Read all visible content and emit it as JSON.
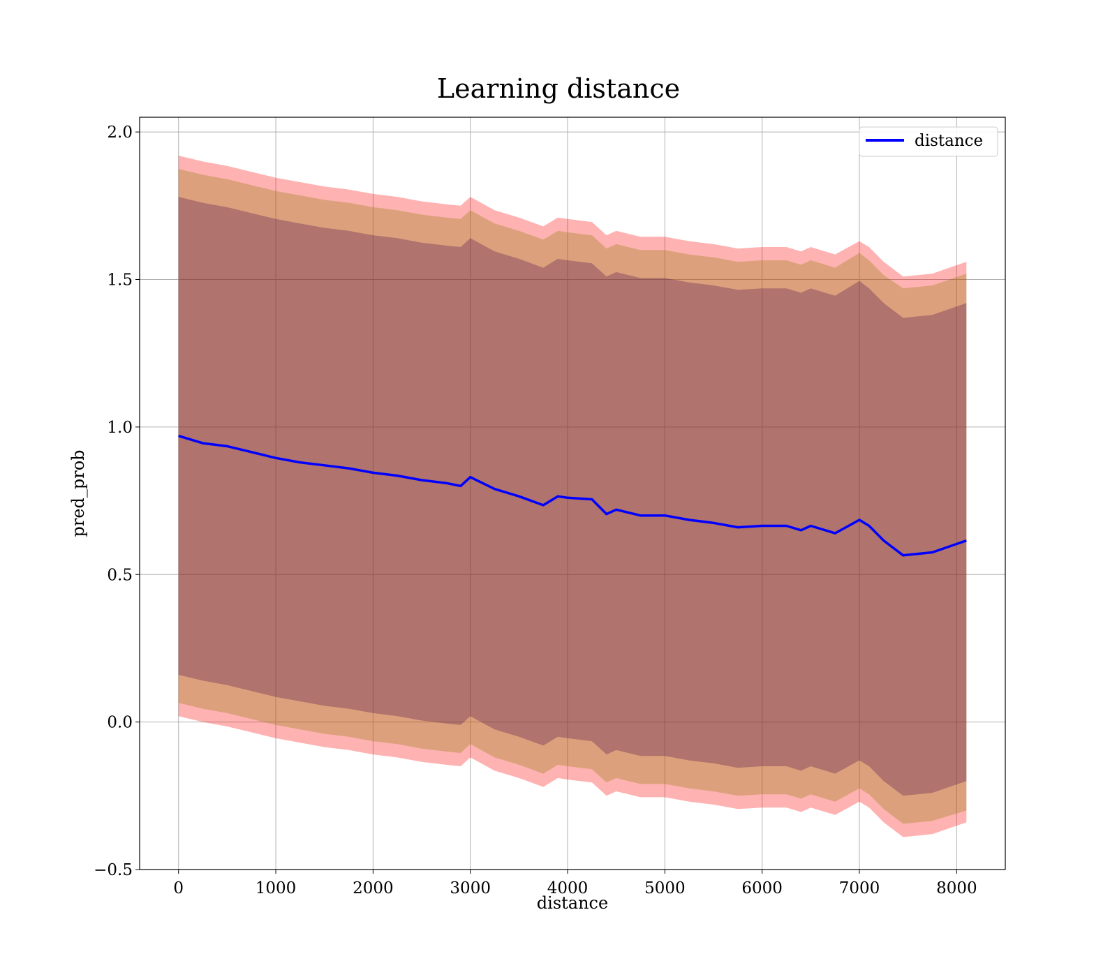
{
  "chart_data": {
    "type": "line",
    "title": "Learning distance",
    "xlabel": "distance",
    "ylabel": "pred_prob",
    "xlim": [
      -400,
      8500
    ],
    "ylim": [
      -0.5,
      2.05
    ],
    "xticks": [
      0,
      1000,
      2000,
      3000,
      4000,
      5000,
      6000,
      7000,
      8000
    ],
    "xtick_labels": [
      "0",
      "1000",
      "2000",
      "3000",
      "4000",
      "5000",
      "6000",
      "7000",
      "8000"
    ],
    "yticks": [
      -0.5,
      0.0,
      0.5,
      1.0,
      1.5,
      2.0
    ],
    "ytick_labels": [
      "−0.5",
      "0.0",
      "0.5",
      "1.0",
      "1.5",
      "2.0"
    ],
    "grid": true,
    "legend_position": "top-right",
    "colors": {
      "line": "#0000ff",
      "band_outer": "#ff0000",
      "band_middle": "#8b7a00",
      "band_inner": "#4b0a4b",
      "grid": "#b0b0b0"
    },
    "series": [
      {
        "name": "distance",
        "x": [
          0,
          250,
          500,
          750,
          1000,
          1250,
          1500,
          1750,
          2000,
          2250,
          2500,
          2750,
          2900,
          3000,
          3250,
          3500,
          3750,
          3900,
          4000,
          4250,
          4400,
          4500,
          4750,
          5000,
          5250,
          5500,
          5750,
          6000,
          6250,
          6400,
          6500,
          6750,
          7000,
          7100,
          7250,
          7450,
          7750,
          8100
        ],
        "y": [
          0.97,
          0.945,
          0.935,
          0.915,
          0.895,
          0.88,
          0.87,
          0.86,
          0.845,
          0.835,
          0.82,
          0.81,
          0.8,
          0.83,
          0.79,
          0.765,
          0.735,
          0.765,
          0.76,
          0.755,
          0.705,
          0.72,
          0.7,
          0.7,
          0.685,
          0.675,
          0.66,
          0.665,
          0.665,
          0.65,
          0.665,
          0.64,
          0.685,
          0.665,
          0.615,
          0.565,
          0.575,
          0.615
        ]
      }
    ],
    "bands": [
      {
        "x": [
          0,
          250,
          500,
          750,
          1000,
          1250,
          1500,
          1750,
          2000,
          2250,
          2500,
          2750,
          2900,
          3000,
          3250,
          3500,
          3750,
          3900,
          4000,
          4250,
          4400,
          4500,
          4750,
          5000,
          5250,
          5500,
          5750,
          6000,
          6250,
          6400,
          6500,
          6750,
          7000,
          7100,
          7250,
          7450,
          7750,
          8100
        ],
        "upper": [
          1.92,
          1.9,
          1.885,
          1.865,
          1.845,
          1.83,
          1.815,
          1.805,
          1.79,
          1.78,
          1.765,
          1.755,
          1.75,
          1.78,
          1.735,
          1.71,
          1.68,
          1.71,
          1.705,
          1.695,
          1.65,
          1.665,
          1.645,
          1.645,
          1.63,
          1.62,
          1.605,
          1.61,
          1.61,
          1.595,
          1.61,
          1.585,
          1.63,
          1.61,
          1.56,
          1.51,
          1.52,
          1.56
        ],
        "lower": [
          0.02,
          0.0,
          -0.015,
          -0.035,
          -0.055,
          -0.07,
          -0.085,
          -0.095,
          -0.11,
          -0.12,
          -0.135,
          -0.145,
          -0.15,
          -0.12,
          -0.165,
          -0.19,
          -0.22,
          -0.19,
          -0.195,
          -0.205,
          -0.25,
          -0.235,
          -0.255,
          -0.255,
          -0.27,
          -0.28,
          -0.295,
          -0.29,
          -0.29,
          -0.305,
          -0.29,
          -0.315,
          -0.27,
          -0.29,
          -0.34,
          -0.39,
          -0.38,
          -0.34
        ]
      },
      {
        "x": [
          0,
          250,
          500,
          750,
          1000,
          1250,
          1500,
          1750,
          2000,
          2250,
          2500,
          2750,
          2900,
          3000,
          3250,
          3500,
          3750,
          3900,
          4000,
          4250,
          4400,
          4500,
          4750,
          5000,
          5250,
          5500,
          5750,
          6000,
          6250,
          6400,
          6500,
          6750,
          7000,
          7100,
          7250,
          7450,
          7750,
          8100
        ],
        "upper": [
          1.875,
          1.855,
          1.84,
          1.82,
          1.8,
          1.785,
          1.77,
          1.76,
          1.745,
          1.735,
          1.72,
          1.71,
          1.705,
          1.735,
          1.69,
          1.665,
          1.635,
          1.665,
          1.66,
          1.65,
          1.605,
          1.62,
          1.6,
          1.6,
          1.585,
          1.575,
          1.56,
          1.565,
          1.565,
          1.55,
          1.565,
          1.54,
          1.59,
          1.565,
          1.515,
          1.47,
          1.48,
          1.52
        ],
        "lower": [
          0.065,
          0.045,
          0.03,
          0.01,
          -0.01,
          -0.025,
          -0.04,
          -0.05,
          -0.065,
          -0.075,
          -0.09,
          -0.1,
          -0.105,
          -0.075,
          -0.12,
          -0.145,
          -0.175,
          -0.145,
          -0.15,
          -0.16,
          -0.205,
          -0.19,
          -0.21,
          -0.21,
          -0.225,
          -0.235,
          -0.25,
          -0.245,
          -0.245,
          -0.26,
          -0.245,
          -0.27,
          -0.225,
          -0.245,
          -0.295,
          -0.345,
          -0.335,
          -0.3
        ]
      },
      {
        "x": [
          0,
          250,
          500,
          750,
          1000,
          1250,
          1500,
          1750,
          2000,
          2250,
          2500,
          2750,
          2900,
          3000,
          3250,
          3500,
          3750,
          3900,
          4000,
          4250,
          4400,
          4500,
          4750,
          5000,
          5250,
          5500,
          5750,
          6000,
          6250,
          6400,
          6500,
          6750,
          7000,
          7100,
          7250,
          7450,
          7750,
          8100
        ],
        "upper": [
          1.78,
          1.76,
          1.745,
          1.725,
          1.705,
          1.69,
          1.675,
          1.665,
          1.65,
          1.64,
          1.625,
          1.615,
          1.61,
          1.64,
          1.595,
          1.57,
          1.54,
          1.57,
          1.565,
          1.555,
          1.51,
          1.525,
          1.505,
          1.505,
          1.49,
          1.48,
          1.465,
          1.47,
          1.47,
          1.455,
          1.47,
          1.445,
          1.495,
          1.47,
          1.42,
          1.37,
          1.38,
          1.42
        ],
        "lower": [
          0.16,
          0.14,
          0.125,
          0.105,
          0.085,
          0.07,
          0.055,
          0.045,
          0.03,
          0.02,
          0.005,
          -0.005,
          -0.01,
          0.02,
          -0.025,
          -0.05,
          -0.08,
          -0.05,
          -0.055,
          -0.065,
          -0.11,
          -0.095,
          -0.115,
          -0.115,
          -0.13,
          -0.14,
          -0.155,
          -0.15,
          -0.15,
          -0.165,
          -0.15,
          -0.175,
          -0.13,
          -0.15,
          -0.2,
          -0.25,
          -0.24,
          -0.2
        ]
      }
    ]
  }
}
